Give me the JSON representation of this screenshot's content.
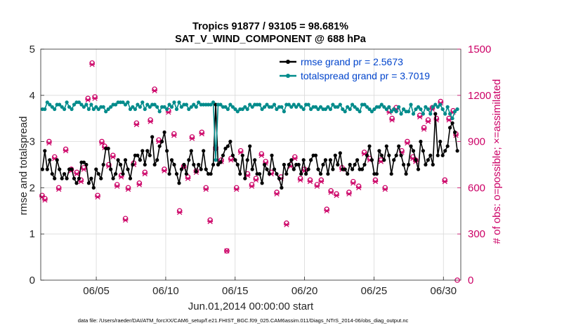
{
  "chart_data": {
    "type": "line",
    "title": "Tropics 91877 / 93105 = 98.681%",
    "subtitle": "SAT_V_WIND_COMPONENT @ 688 hPa",
    "xlabel": "Jun.01,2014 00:00:00 start",
    "ylabel": "rmse and totalspread",
    "y2label": "# of obs: o=possible; ×=assimilated",
    "footnote": "data file: /Users/raeder/DAI/ATM_forcXX/CAM6_setup/f.e21.FHIST_BGC.f09_025.CAM6assim.011/Diags_NTrS_2014-06/obs_diag_output.nc",
    "xlim": [
      1.0,
      31.25
    ],
    "ylim": [
      0,
      5
    ],
    "y2lim": [
      0,
      1500
    ],
    "xticks": [
      5,
      10,
      15,
      20,
      25,
      30
    ],
    "xticklabels": [
      "06/05",
      "06/10",
      "06/15",
      "06/20",
      "06/25",
      "06/30"
    ],
    "yticks": [
      "0",
      "1",
      "2",
      "3",
      "4",
      "5"
    ],
    "y2ticks": [
      "0",
      "300",
      "600",
      "900",
      "1200",
      "1500"
    ],
    "grid": true,
    "legend_position": "top-right",
    "series": [
      {
        "name": "rmse grand pr = 2.5673",
        "color": "#000000",
        "values": [
          2.4,
          2.8,
          2.4,
          2.6,
          2.3,
          2.2,
          2.6,
          2.4,
          2.2,
          2.3,
          2.2,
          2.4,
          2.4,
          2.2,
          2.1,
          2.2,
          2.55,
          2.55,
          2.5,
          2.1,
          2.2,
          2.0,
          2.4,
          2.3,
          2.2,
          2.5,
          2.85,
          2.85,
          2.4,
          2.2,
          2.3,
          2.6,
          2.5,
          2.3,
          2.6,
          2.4,
          2.2,
          2.5,
          2.7,
          2.7,
          2.6,
          2.8,
          2.5,
          2.8,
          2.7,
          3.1,
          2.5,
          2.6,
          2.9,
          3.0,
          3.2,
          2.8,
          2.3,
          2.6,
          2.5,
          2.3,
          2.1,
          2.4,
          2.5,
          2.3,
          2.6,
          2.8,
          2.5,
          2.35,
          2.5,
          2.4,
          2.8,
          2.4,
          2.3,
          2.3,
          2.5,
          3.8,
          2.5,
          2.55,
          2.7,
          2.85,
          2.9,
          3.0,
          2.7,
          2.6,
          2.5,
          2.3,
          2.7,
          2.2,
          2.6,
          2.9,
          2.4,
          2.6,
          2.3,
          2.3,
          2.1,
          2.5,
          2.4,
          2.3,
          2.7,
          2.4,
          2.3,
          2.2,
          2.0,
          2.5,
          2.3,
          2.5,
          2.6,
          2.4,
          2.5,
          2.5,
          2.3,
          2.6,
          2.3,
          2.4,
          2.6,
          2.7,
          2.7,
          2.4,
          2.3,
          2.5,
          2.6,
          2.3,
          2.6,
          2.4,
          2.7,
          2.5,
          2.75,
          2.4,
          2.4,
          2.3,
          2.5,
          2.4,
          2.5,
          2.6,
          2.4,
          2.4,
          2.5,
          2.7,
          2.9,
          2.6,
          2.3,
          2.3,
          2.8,
          2.7,
          2.6,
          2.9,
          2.7,
          2.3,
          2.6,
          2.7,
          2.9,
          2.7,
          2.5,
          2.3,
          2.5,
          2.9,
          2.8,
          2.6,
          2.4,
          3.0,
          2.8,
          2.5,
          2.6,
          2.7,
          2.5,
          3.6,
          2.7,
          3.0,
          2.7,
          2.8,
          2.9,
          3.3,
          3.4,
          3.2,
          2.8
        ]
      },
      {
        "name": "totalspread grand pr = 3.7019",
        "color": "#008b8b",
        "values": [
          3.7,
          3.7,
          3.85,
          3.8,
          3.75,
          3.7,
          3.8,
          3.8,
          3.75,
          3.7,
          3.85,
          3.75,
          3.7,
          3.8,
          3.85,
          3.85,
          3.8,
          3.75,
          3.8,
          3.7,
          3.8,
          3.7,
          3.75,
          3.7,
          3.75,
          3.75,
          3.65,
          3.7,
          3.75,
          3.8,
          3.8,
          3.85,
          3.85,
          3.85,
          3.8,
          3.85,
          3.7,
          3.75,
          3.7,
          3.8,
          3.75,
          3.85,
          3.7,
          3.8,
          3.75,
          3.8,
          3.8,
          3.75,
          3.65,
          3.75,
          3.75,
          3.7,
          3.8,
          3.75,
          3.85,
          3.7,
          3.85,
          3.75,
          3.8,
          3.8,
          3.7,
          3.75,
          3.8,
          3.75,
          3.85,
          3.8,
          3.8,
          3.8,
          3.8,
          3.8,
          3.85,
          2.6,
          3.8,
          3.8,
          3.75,
          3.75,
          3.7,
          3.8,
          3.75,
          3.7,
          3.65,
          3.7,
          3.7,
          3.75,
          3.7,
          3.8,
          3.75,
          3.8,
          3.8,
          3.8,
          3.7,
          3.75,
          3.8,
          3.75,
          3.75,
          3.8,
          3.7,
          3.75,
          3.75,
          3.65,
          3.8,
          3.8,
          3.75,
          3.8,
          3.75,
          3.8,
          3.75,
          3.7,
          3.8,
          3.8,
          3.7,
          3.75,
          3.75,
          3.7,
          3.75,
          3.7,
          3.7,
          3.75,
          3.7,
          3.8,
          3.75,
          3.75,
          3.8,
          3.7,
          3.65,
          3.75,
          3.7,
          3.8,
          3.75,
          3.7,
          3.65,
          3.8,
          3.8,
          3.75,
          3.7,
          3.65,
          3.7,
          3.75,
          3.75,
          3.8,
          3.75,
          3.7,
          3.75,
          3.65,
          3.7,
          3.65,
          3.75,
          3.6,
          3.7,
          3.65,
          3.65,
          3.8,
          3.6,
          3.7,
          3.75,
          3.7,
          3.6,
          3.75,
          3.7,
          3.6,
          3.75,
          3.8,
          3.75,
          3.8,
          3.7,
          3.6,
          3.75,
          3.6,
          3.5,
          3.65,
          3.7
        ]
      }
    ],
    "obs_color": "#cc0066",
    "obs_possible": [
      [
        1.1,
        550
      ],
      [
        1.3,
        530
      ],
      [
        1.6,
        900
      ],
      [
        2.0,
        800
      ],
      [
        2.3,
        600
      ],
      [
        2.8,
        850
      ],
      [
        3.2,
        720
      ],
      [
        3.6,
        700
      ],
      [
        3.9,
        650
      ],
      [
        4.1,
        730
      ],
      [
        4.4,
        1180
      ],
      [
        4.7,
        1410
      ],
      [
        4.9,
        1190
      ],
      [
        5.1,
        550
      ],
      [
        5.4,
        900
      ],
      [
        5.6,
        870
      ],
      [
        5.9,
        750
      ],
      [
        6.2,
        810
      ],
      [
        6.5,
        620
      ],
      [
        6.8,
        680
      ],
      [
        7.1,
        400
      ],
      [
        7.3,
        600
      ],
      [
        7.7,
        760
      ],
      [
        7.9,
        1020
      ],
      [
        8.1,
        630
      ],
      [
        8.5,
        700
      ],
      [
        8.9,
        1040
      ],
      [
        9.2,
        1240
      ],
      [
        9.5,
        910
      ],
      [
        9.9,
        720
      ],
      [
        10.2,
        1100
      ],
      [
        10.6,
        950
      ],
      [
        11.0,
        450
      ],
      [
        11.3,
        740
      ],
      [
        11.6,
        670
      ],
      [
        11.9,
        930
      ],
      [
        12.2,
        710
      ],
      [
        12.6,
        960
      ],
      [
        12.9,
        600
      ],
      [
        13.2,
        390
      ],
      [
        13.6,
        860
      ],
      [
        14.0,
        780
      ],
      [
        14.4,
        190
      ],
      [
        14.7,
        790
      ],
      [
        15.1,
        600
      ],
      [
        15.4,
        840
      ],
      [
        15.9,
        690
      ],
      [
        16.2,
        620
      ],
      [
        16.5,
        660
      ],
      [
        16.9,
        820
      ],
      [
        17.2,
        770
      ],
      [
        17.6,
        700
      ],
      [
        18.0,
        570
      ],
      [
        18.3,
        670
      ],
      [
        18.7,
        370
      ],
      [
        19.0,
        750
      ],
      [
        19.3,
        800
      ],
      [
        19.7,
        660
      ],
      [
        20.0,
        720
      ],
      [
        20.4,
        650
      ],
      [
        20.9,
        620
      ],
      [
        21.2,
        650
      ],
      [
        21.6,
        460
      ],
      [
        21.9,
        580
      ],
      [
        22.3,
        560
      ],
      [
        22.7,
        730
      ],
      [
        23.2,
        570
      ],
      [
        23.5,
        640
      ],
      [
        23.9,
        610
      ],
      [
        24.3,
        830
      ],
      [
        24.7,
        790
      ],
      [
        25.1,
        650
      ],
      [
        25.5,
        780
      ],
      [
        25.8,
        600
      ],
      [
        26.1,
        1100
      ],
      [
        26.3,
        1050
      ],
      [
        26.6,
        1120
      ],
      [
        27.0,
        840
      ],
      [
        27.4,
        900
      ],
      [
        27.8,
        800
      ],
      [
        28.0,
        780
      ],
      [
        28.3,
        1070
      ],
      [
        28.6,
        990
      ],
      [
        28.9,
        1040
      ],
      [
        29.2,
        1120
      ],
      [
        29.5,
        1050
      ],
      [
        29.8,
        1160
      ],
      [
        30.1,
        650
      ],
      [
        30.4,
        1050
      ],
      [
        30.7,
        1100
      ],
      [
        30.9,
        950
      ]
    ],
    "obs_assimilated": [
      [
        1.1,
        540
      ],
      [
        1.3,
        520
      ],
      [
        1.6,
        890
      ],
      [
        2.0,
        790
      ],
      [
        2.3,
        590
      ],
      [
        2.8,
        840
      ],
      [
        3.2,
        710
      ],
      [
        3.6,
        690
      ],
      [
        3.9,
        640
      ],
      [
        4.1,
        720
      ],
      [
        4.4,
        1170
      ],
      [
        4.7,
        1400
      ],
      [
        4.9,
        1180
      ],
      [
        5.1,
        540
      ],
      [
        5.4,
        890
      ],
      [
        5.6,
        860
      ],
      [
        5.9,
        740
      ],
      [
        6.2,
        800
      ],
      [
        6.5,
        610
      ],
      [
        6.8,
        670
      ],
      [
        7.1,
        390
      ],
      [
        7.3,
        590
      ],
      [
        7.7,
        750
      ],
      [
        7.9,
        1010
      ],
      [
        8.1,
        620
      ],
      [
        8.5,
        690
      ],
      [
        8.9,
        1030
      ],
      [
        9.2,
        1230
      ],
      [
        9.5,
        900
      ],
      [
        9.9,
        710
      ],
      [
        10.2,
        1090
      ],
      [
        10.6,
        940
      ],
      [
        11.0,
        440
      ],
      [
        11.3,
        730
      ],
      [
        11.6,
        660
      ],
      [
        11.9,
        920
      ],
      [
        12.2,
        700
      ],
      [
        12.6,
        950
      ],
      [
        12.9,
        590
      ],
      [
        13.2,
        380
      ],
      [
        13.6,
        850
      ],
      [
        14.0,
        770
      ],
      [
        14.4,
        190
      ],
      [
        14.7,
        780
      ],
      [
        15.1,
        590
      ],
      [
        15.4,
        830
      ],
      [
        15.9,
        680
      ],
      [
        16.2,
        610
      ],
      [
        16.5,
        650
      ],
      [
        16.9,
        810
      ],
      [
        17.2,
        760
      ],
      [
        17.6,
        690
      ],
      [
        18.0,
        560
      ],
      [
        18.3,
        660
      ],
      [
        18.7,
        360
      ],
      [
        19.0,
        740
      ],
      [
        19.3,
        790
      ],
      [
        19.7,
        650
      ],
      [
        20.0,
        710
      ],
      [
        20.4,
        640
      ],
      [
        20.9,
        610
      ],
      [
        21.2,
        640
      ],
      [
        21.6,
        450
      ],
      [
        21.9,
        570
      ],
      [
        22.3,
        550
      ],
      [
        22.7,
        720
      ],
      [
        23.2,
        560
      ],
      [
        23.5,
        630
      ],
      [
        23.9,
        600
      ],
      [
        24.3,
        820
      ],
      [
        24.7,
        780
      ],
      [
        25.1,
        640
      ],
      [
        25.5,
        770
      ],
      [
        25.8,
        590
      ],
      [
        26.1,
        1090
      ],
      [
        26.3,
        1040
      ],
      [
        26.6,
        1110
      ],
      [
        27.0,
        830
      ],
      [
        27.4,
        890
      ],
      [
        27.8,
        790
      ],
      [
        28.0,
        770
      ],
      [
        28.3,
        1060
      ],
      [
        28.6,
        980
      ],
      [
        28.9,
        1030
      ],
      [
        29.2,
        1110
      ],
      [
        29.5,
        1040
      ],
      [
        29.8,
        1150
      ],
      [
        30.1,
        640
      ],
      [
        30.4,
        1040
      ],
      [
        30.7,
        1090
      ],
      [
        30.9,
        940
      ]
    ],
    "obs_zero_marker": [
      31.0,
      0
    ]
  }
}
